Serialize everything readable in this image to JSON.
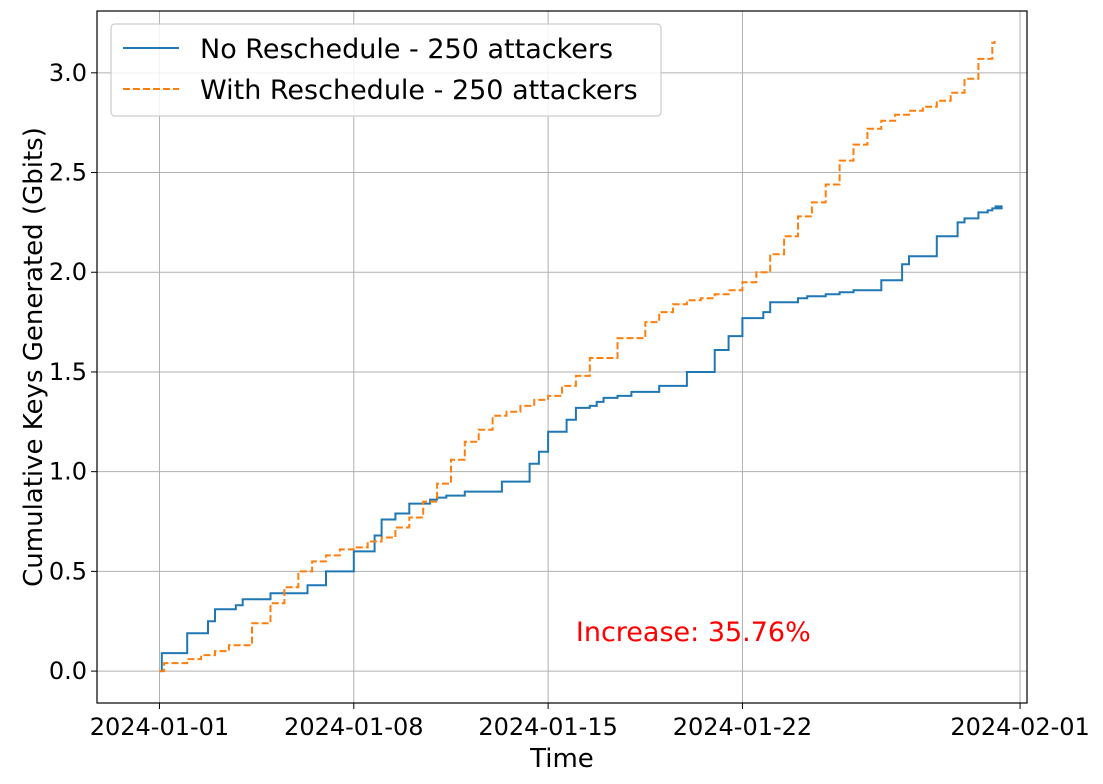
{
  "chart_data": {
    "type": "line",
    "title": "",
    "xlabel": "Time",
    "ylabel": "Cumulative Keys Generated (Gbits)",
    "x_axis_type": "date",
    "xlim": [
      "2023-12-29T18:00",
      "2024-02-01T06:00"
    ],
    "ylim": [
      -0.16,
      3.31
    ],
    "x_ticks": [
      "2024-01-01",
      "2024-01-08",
      "2024-01-15",
      "2024-01-22",
      "2024-02-01"
    ],
    "y_ticks": [
      0.0,
      0.5,
      1.0,
      1.5,
      2.0,
      2.5,
      3.0
    ],
    "y_tick_labels": [
      "0.0",
      "0.5",
      "1.0",
      "1.5",
      "2.0",
      "2.5",
      "3.0"
    ],
    "grid": true,
    "legend_position": "upper-left",
    "annotation": {
      "text": "Increase: 35.76%",
      "color": "#ff0000",
      "x": "2024-01-16T00:00",
      "y": 0.2
    },
    "series": [
      {
        "name": "No Reschedule - 250 attackers",
        "color": "#1f77b4",
        "style": "solid",
        "step": "post",
        "x": [
          "2024-01-01T00:00",
          "2024-01-01T02:00",
          "2024-01-02T00:00",
          "2024-01-02T18:00",
          "2024-01-03T00:00",
          "2024-01-03T18:00",
          "2024-01-04T00:00",
          "2024-01-04T08:00",
          "2024-01-05T00:00",
          "2024-01-05T08:00",
          "2024-01-06T08:00",
          "2024-01-07T00:00",
          "2024-01-08T00:00",
          "2024-01-08T18:00",
          "2024-01-09T00:00",
          "2024-01-09T12:00",
          "2024-01-10T00:00",
          "2024-01-10T18:00",
          "2024-01-11T00:00",
          "2024-01-11T08:00",
          "2024-01-12T00:00",
          "2024-01-12T08:00",
          "2024-01-13T08:00",
          "2024-01-14T08:00",
          "2024-01-14T16:00",
          "2024-01-15T00:00",
          "2024-01-15T16:00",
          "2024-01-16T00:00",
          "2024-01-16T12:00",
          "2024-01-16T18:00",
          "2024-01-17T00:00",
          "2024-01-17T12:00",
          "2024-01-18T00:00",
          "2024-01-18T12:00",
          "2024-01-19T00:00",
          "2024-01-20T00:00",
          "2024-01-21T00:00",
          "2024-01-21T12:00",
          "2024-01-22T00:00",
          "2024-01-22T18:00",
          "2024-01-23T00:00",
          "2024-01-23T12:00",
          "2024-01-24T00:00",
          "2024-01-24T08:00",
          "2024-01-25T00:00",
          "2024-01-25T12:00",
          "2024-01-26T00:00",
          "2024-01-27T00:00",
          "2024-01-27T18:00",
          "2024-01-28T00:00",
          "2024-01-29T00:00",
          "2024-01-29T18:00",
          "2024-01-30T00:00",
          "2024-01-30T12:00",
          "2024-01-30T20:00",
          "2024-01-31T00:00",
          "2024-01-31T08:00",
          "2024-01-31T02:00"
        ],
        "y": [
          0.0,
          0.09,
          0.19,
          0.25,
          0.31,
          0.33,
          0.36,
          0.36,
          0.39,
          0.39,
          0.43,
          0.5,
          0.6,
          0.68,
          0.76,
          0.79,
          0.84,
          0.86,
          0.87,
          0.88,
          0.9,
          0.9,
          0.95,
          1.04,
          1.1,
          1.2,
          1.26,
          1.32,
          1.33,
          1.35,
          1.37,
          1.38,
          1.4,
          1.4,
          1.43,
          1.5,
          1.61,
          1.68,
          1.77,
          1.8,
          1.85,
          1.85,
          1.87,
          1.88,
          1.89,
          1.9,
          1.91,
          1.96,
          2.04,
          2.08,
          2.18,
          2.25,
          2.27,
          2.3,
          2.31,
          2.32,
          2.33,
          2.33
        ]
      },
      {
        "name": "With Reschedule - 250 attackers",
        "color": "#ff7f0e",
        "style": "dashed",
        "step": "post",
        "x": [
          "2024-01-01T00:00",
          "2024-01-01T04:00",
          "2024-01-01T16:00",
          "2024-01-02T00:00",
          "2024-01-02T12:00",
          "2024-01-03T00:00",
          "2024-01-03T12:00",
          "2024-01-04T00:00",
          "2024-01-04T08:00",
          "2024-01-05T00:00",
          "2024-01-05T12:00",
          "2024-01-06T00:00",
          "2024-01-06T12:00",
          "2024-01-07T00:00",
          "2024-01-07T12:00",
          "2024-01-08T00:00",
          "2024-01-08T12:00",
          "2024-01-09T00:00",
          "2024-01-09T12:00",
          "2024-01-10T00:00",
          "2024-01-10T12:00",
          "2024-01-11T00:00",
          "2024-01-11T12:00",
          "2024-01-12T00:00",
          "2024-01-12T12:00",
          "2024-01-13T00:00",
          "2024-01-13T12:00",
          "2024-01-14T00:00",
          "2024-01-14T12:00",
          "2024-01-15T00:00",
          "2024-01-15T12:00",
          "2024-01-16T00:00",
          "2024-01-16T12:00",
          "2024-01-17T00:00",
          "2024-01-17T12:00",
          "2024-01-18T00:00",
          "2024-01-18T12:00",
          "2024-01-19T00:00",
          "2024-01-19T12:00",
          "2024-01-20T00:00",
          "2024-01-20T12:00",
          "2024-01-21T00:00",
          "2024-01-21T12:00",
          "2024-01-22T00:00",
          "2024-01-22T12:00",
          "2024-01-23T00:00",
          "2024-01-23T12:00",
          "2024-01-24T00:00",
          "2024-01-24T12:00",
          "2024-01-25T00:00",
          "2024-01-25T12:00",
          "2024-01-26T00:00",
          "2024-01-26T12:00",
          "2024-01-27T00:00",
          "2024-01-27T12:00",
          "2024-01-28T00:00",
          "2024-01-28T12:00",
          "2024-01-29T00:00",
          "2024-01-29T12:00",
          "2024-01-30T00:00",
          "2024-01-30T12:00",
          "2024-01-31T00:00",
          "2024-01-31T02:00"
        ],
        "y": [
          0.0,
          0.04,
          0.04,
          0.06,
          0.08,
          0.1,
          0.13,
          0.13,
          0.24,
          0.34,
          0.42,
          0.5,
          0.55,
          0.58,
          0.61,
          0.62,
          0.65,
          0.67,
          0.72,
          0.77,
          0.85,
          0.94,
          1.06,
          1.15,
          1.21,
          1.28,
          1.3,
          1.33,
          1.36,
          1.38,
          1.43,
          1.48,
          1.57,
          1.57,
          1.67,
          1.67,
          1.75,
          1.8,
          1.84,
          1.86,
          1.87,
          1.89,
          1.91,
          1.95,
          2.0,
          2.09,
          2.18,
          2.28,
          2.35,
          2.44,
          2.56,
          2.64,
          2.72,
          2.76,
          2.79,
          2.81,
          2.83,
          2.86,
          2.9,
          2.97,
          3.07,
          3.15,
          3.16
        ]
      }
    ]
  }
}
